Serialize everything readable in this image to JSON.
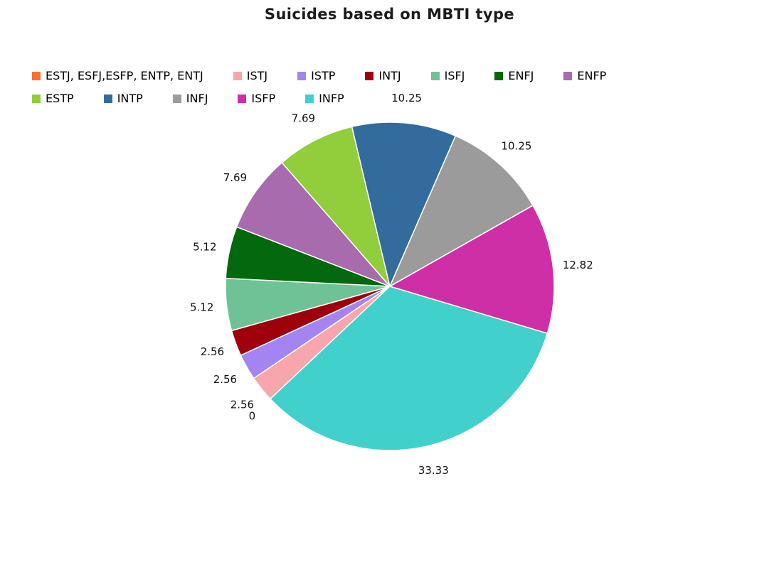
{
  "chart_data": {
    "type": "pie",
    "title": "Suicides based on MBTI type",
    "legend_position": "top-left",
    "labels_position": "outside",
    "direction": "clockwise",
    "start_angle_deg": 223.3,
    "legend_rows": [
      [
        0,
        1,
        2,
        3,
        4,
        5,
        6
      ],
      [
        7,
        8,
        9,
        10,
        11
      ]
    ],
    "slices": [
      {
        "label": "ESTJ, ESFJ,ESFP, ENTP, ENTJ",
        "value": 0,
        "display": "0",
        "color": "#fb6d33"
      },
      {
        "label": "ISTJ",
        "value": 2.56,
        "display": "2.56",
        "color": "#f7a6ad"
      },
      {
        "label": "ISTP",
        "value": 2.56,
        "display": "2.56",
        "color": "#a384f0"
      },
      {
        "label": "INTJ",
        "value": 2.56,
        "display": "2.56",
        "color": "#9f010c"
      },
      {
        "label": "ISFJ",
        "value": 5.12,
        "display": "5.12",
        "color": "#6fc296"
      },
      {
        "label": "ENFJ",
        "value": 5.12,
        "display": "5.12",
        "color": "#04680f"
      },
      {
        "label": "ENFP",
        "value": 7.69,
        "display": "7.69",
        "color": "#a76bae"
      },
      {
        "label": "ESTP",
        "value": 7.69,
        "display": "7.69",
        "color": "#92cd3c"
      },
      {
        "label": "INTP",
        "value": 10.25,
        "display": "10.25",
        "color": "#336b9d"
      },
      {
        "label": "INFJ",
        "value": 10.25,
        "display": "10.25",
        "color": "#9b9b9b"
      },
      {
        "label": "ISFP",
        "value": 12.82,
        "display": "12.82",
        "color": "#ce2fa7"
      },
      {
        "label": "INFP",
        "value": 33.33,
        "display": "33.33",
        "color": "#41d0cb"
      }
    ]
  }
}
